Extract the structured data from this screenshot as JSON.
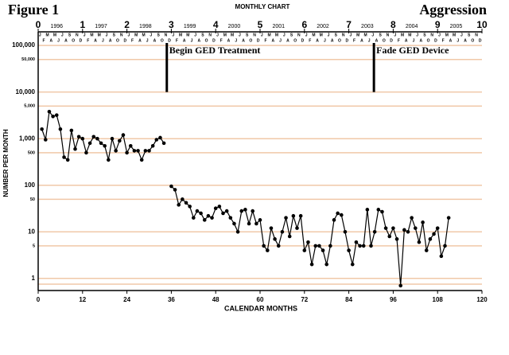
{
  "chart_data": {
    "type": "line",
    "title": "Figure 1",
    "subtitle": "MONTHLY CHART",
    "label": "Aggression",
    "x_label": "CALENDAR MONTHS",
    "y_label": "NUMBER PER MONTH",
    "log_y": true,
    "grid": true,
    "color": "#000000",
    "grid_color": "#f0c8a8",
    "xlim": [
      0,
      120
    ],
    "xticks": [
      0,
      12,
      24,
      36,
      48,
      60,
      72,
      84,
      96,
      108,
      120
    ],
    "ylim": [
      0.55,
      155000
    ],
    "yticks": [
      1,
      5,
      10,
      50,
      100,
      500,
      {
        "value": 1000,
        "label": "1,000"
      },
      {
        "value": 5000,
        "label": "5,000"
      },
      {
        "value": 10000,
        "label": "10,000"
      },
      {
        "value": 50000,
        "label": "50,000"
      },
      {
        "value": 100000,
        "label": "100,000"
      }
    ],
    "top_axis_labels": [
      0,
      1,
      2,
      3,
      4,
      5,
      6,
      7,
      8,
      9,
      10
    ],
    "years": [
      "1996",
      "1997",
      "1998",
      "1999",
      "2000",
      "2001",
      "2002",
      "2003",
      "2004",
      "2005"
    ],
    "month_letters": [
      "J",
      "F",
      "M",
      "A",
      "M",
      "J",
      "J",
      "A",
      "S",
      "O",
      "N",
      "D"
    ],
    "phase_changes": [
      {
        "label": "Begin GED Treatment",
        "x": 35
      },
      {
        "label": "Fade GED Device",
        "x": 91
      }
    ],
    "x": [
      1,
      2,
      3,
      4,
      5,
      6,
      7,
      8,
      9,
      10,
      11,
      12,
      13,
      14,
      15,
      16,
      17,
      18,
      19,
      20,
      21,
      22,
      23,
      24,
      25,
      26,
      27,
      28,
      29,
      30,
      31,
      32,
      33,
      34,
      35,
      36,
      37,
      38,
      39,
      40,
      41,
      42,
      43,
      44,
      45,
      46,
      47,
      48,
      49,
      50,
      51,
      52,
      53,
      54,
      55,
      56,
      57,
      58,
      59,
      60,
      61,
      62,
      63,
      64,
      65,
      66,
      67,
      68,
      69,
      70,
      71,
      72,
      73,
      74,
      75,
      76,
      77,
      78,
      79,
      80,
      81,
      82,
      83,
      84,
      85,
      86,
      87,
      88,
      89,
      90,
      91,
      92,
      93,
      94,
      95,
      96,
      97,
      98,
      99,
      100,
      101,
      102,
      103,
      104,
      105,
      106,
      107,
      108,
      109,
      110,
      111
    ],
    "values": [
      1600,
      950,
      3800,
      3000,
      3200,
      1600,
      400,
      350,
      1500,
      600,
      1100,
      1000,
      500,
      800,
      1100,
      1000,
      800,
      700,
      350,
      1000,
      550,
      900,
      1200,
      500,
      700,
      550,
      550,
      350,
      550,
      550,
      700,
      950,
      1050,
      800,
      null,
      95,
      80,
      38,
      50,
      42,
      35,
      20,
      28,
      25,
      18,
      22,
      20,
      32,
      35,
      25,
      28,
      20,
      15,
      10,
      28,
      30,
      15,
      28,
      15,
      18,
      5,
      4,
      12,
      7,
      5,
      10,
      20,
      8,
      22,
      12,
      22,
      4,
      6,
      2,
      5,
      5,
      4,
      2,
      5,
      18,
      25,
      23,
      10,
      4,
      2,
      6,
      5,
      5,
      30,
      5,
      10,
      30,
      27,
      12,
      8,
      12,
      7,
      0.7,
      11,
      10,
      20,
      12,
      6,
      16,
      4,
      7,
      9,
      12,
      3,
      5,
      20
    ]
  }
}
